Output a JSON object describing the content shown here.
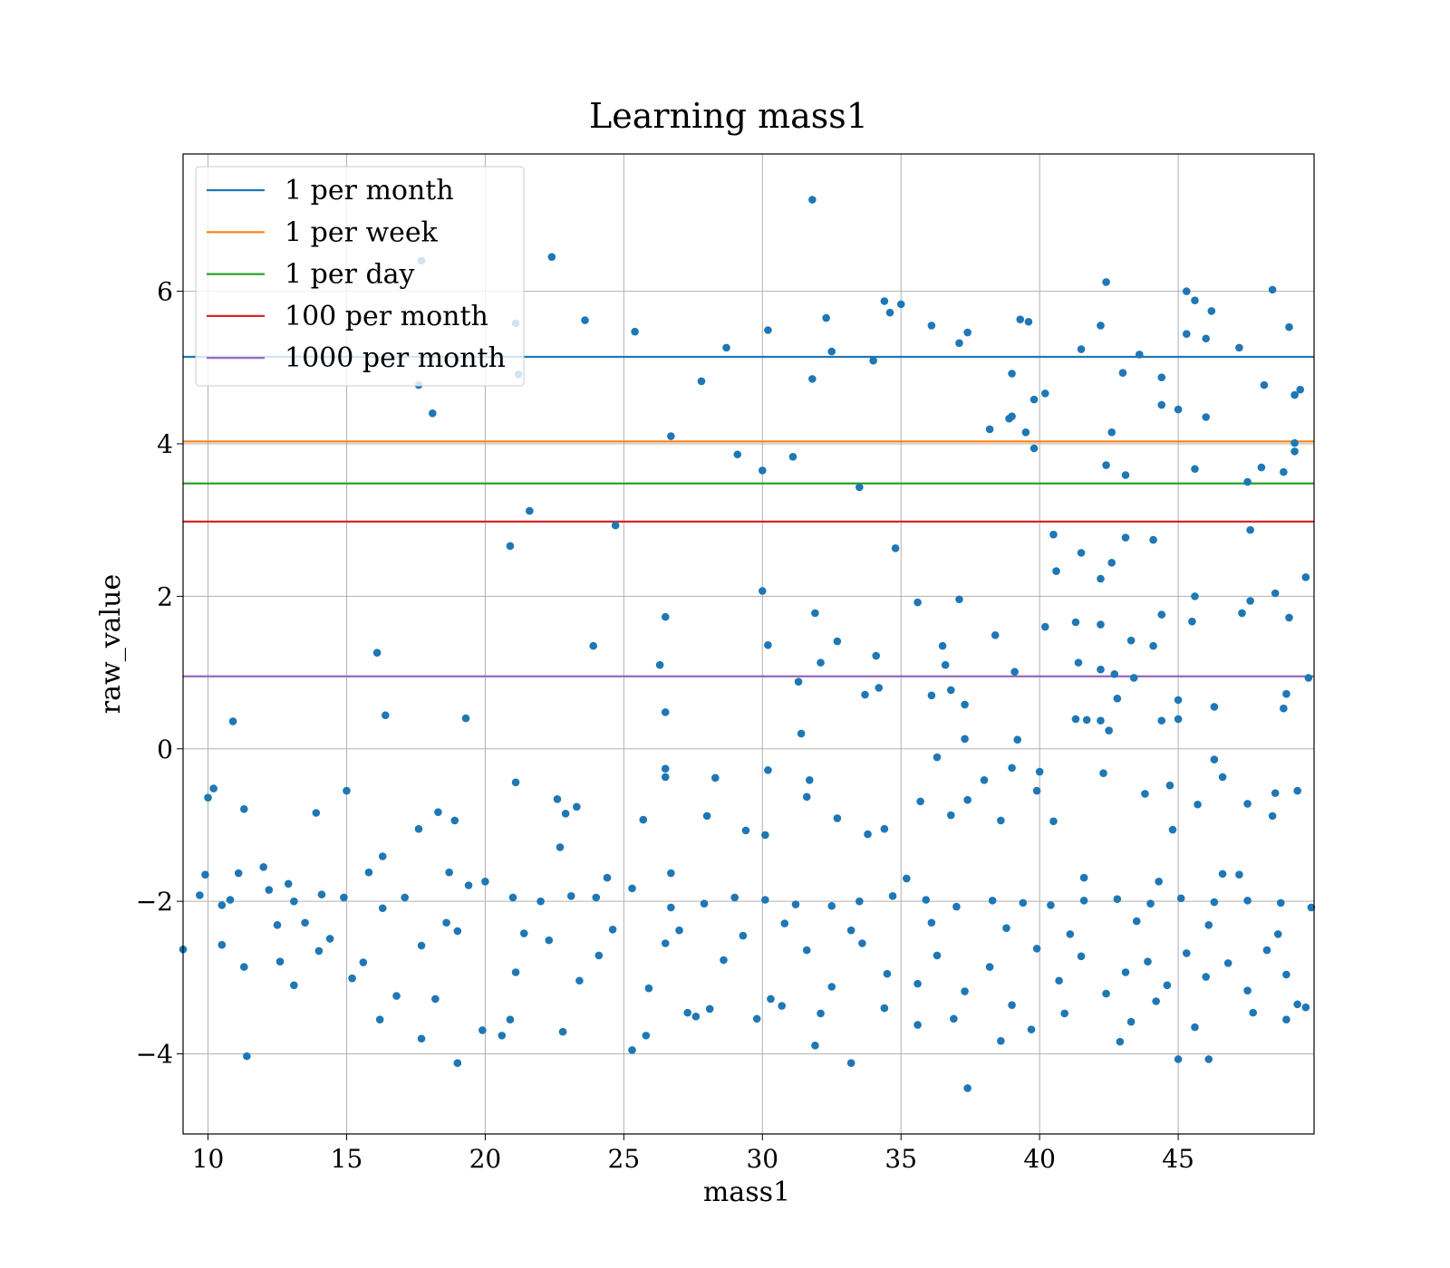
{
  "chart_data": {
    "type": "scatter",
    "title": "Learning mass1",
    "xlabel": "mass1",
    "ylabel": "raw_value",
    "xlim": [
      9.1,
      49.9
    ],
    "ylim": [
      -5.05,
      7.8
    ],
    "x_ticks": [
      10,
      15,
      20,
      25,
      30,
      35,
      40,
      45
    ],
    "x_tick_labels": [
      "10",
      "15",
      "20",
      "25",
      "30",
      "35",
      "40",
      "45"
    ],
    "y_ticks": [
      -4,
      -2,
      0,
      2,
      4,
      6
    ],
    "y_tick_labels": [
      "−4",
      "−2",
      "0",
      "2",
      "4",
      "6"
    ],
    "grid": true,
    "legend_position": "top-left",
    "point_color": "#1f77b4",
    "hlines": [
      {
        "name": "1 per month",
        "y": 5.14,
        "color": "#1f77b4"
      },
      {
        "name": "1 per week",
        "y": 4.03,
        "color": "#ff7f0e"
      },
      {
        "name": "1 per day",
        "y": 3.48,
        "color": "#2ca02c"
      },
      {
        "name": "100 per month",
        "y": 2.98,
        "color": "#d62728"
      },
      {
        "name": "1000 per month",
        "y": 0.95,
        "color": "#9467bd"
      }
    ],
    "points": [
      [
        31.8,
        7.2
      ],
      [
        22.4,
        6.45
      ],
      [
        17.7,
        6.4
      ],
      [
        42.4,
        6.12
      ],
      [
        45.3,
        6.0
      ],
      [
        48.4,
        6.02
      ],
      [
        45.6,
        5.88
      ],
      [
        34.4,
        5.87
      ],
      [
        35.0,
        5.83
      ],
      [
        34.6,
        5.72
      ],
      [
        46.2,
        5.74
      ],
      [
        23.6,
        5.62
      ],
      [
        32.3,
        5.65
      ],
      [
        21.1,
        5.58
      ],
      [
        39.3,
        5.63
      ],
      [
        39.6,
        5.6
      ],
      [
        36.1,
        5.55
      ],
      [
        42.2,
        5.55
      ],
      [
        49.0,
        5.53
      ],
      [
        25.4,
        5.47
      ],
      [
        30.2,
        5.49
      ],
      [
        37.4,
        5.46
      ],
      [
        45.3,
        5.44
      ],
      [
        46.0,
        5.38
      ],
      [
        37.1,
        5.32
      ],
      [
        28.7,
        5.26
      ],
      [
        41.5,
        5.24
      ],
      [
        47.2,
        5.26
      ],
      [
        32.5,
        5.21
      ],
      [
        43.6,
        5.17
      ],
      [
        34.0,
        5.09
      ],
      [
        39.0,
        4.92
      ],
      [
        43.0,
        4.93
      ],
      [
        21.2,
        4.91
      ],
      [
        44.4,
        4.87
      ],
      [
        27.8,
        4.82
      ],
      [
        31.8,
        4.85
      ],
      [
        17.6,
        4.77
      ],
      [
        48.1,
        4.77
      ],
      [
        49.4,
        4.71
      ],
      [
        49.2,
        4.64
      ],
      [
        40.2,
        4.66
      ],
      [
        39.8,
        4.58
      ],
      [
        44.4,
        4.51
      ],
      [
        45.0,
        4.45
      ],
      [
        18.1,
        4.4
      ],
      [
        38.9,
        4.33
      ],
      [
        39.0,
        4.36
      ],
      [
        46.0,
        4.35
      ],
      [
        38.2,
        4.19
      ],
      [
        39.5,
        4.15
      ],
      [
        42.6,
        4.15
      ],
      [
        26.7,
        4.1
      ],
      [
        49.2,
        4.01
      ],
      [
        39.8,
        3.94
      ],
      [
        49.2,
        3.9
      ],
      [
        29.1,
        3.86
      ],
      [
        31.1,
        3.83
      ],
      [
        42.4,
        3.72
      ],
      [
        48.0,
        3.69
      ],
      [
        45.6,
        3.67
      ],
      [
        30.0,
        3.65
      ],
      [
        48.8,
        3.63
      ],
      [
        43.1,
        3.59
      ],
      [
        47.5,
        3.5
      ],
      [
        33.5,
        3.43
      ],
      [
        21.6,
        3.12
      ],
      [
        24.7,
        2.93
      ],
      [
        47.6,
        2.87
      ],
      [
        40.5,
        2.81
      ],
      [
        43.1,
        2.77
      ],
      [
        44.1,
        2.74
      ],
      [
        20.9,
        2.66
      ],
      [
        34.8,
        2.63
      ],
      [
        41.5,
        2.57
      ],
      [
        42.6,
        2.44
      ],
      [
        40.6,
        2.33
      ],
      [
        49.6,
        2.25
      ],
      [
        42.2,
        2.23
      ],
      [
        30.0,
        2.07
      ],
      [
        48.5,
        2.04
      ],
      [
        45.6,
        2.0
      ],
      [
        47.6,
        1.94
      ],
      [
        35.6,
        1.92
      ],
      [
        37.1,
        1.96
      ],
      [
        47.3,
        1.78
      ],
      [
        31.9,
        1.78
      ],
      [
        44.4,
        1.76
      ],
      [
        26.5,
        1.73
      ],
      [
        49.0,
        1.72
      ],
      [
        45.5,
        1.67
      ],
      [
        41.3,
        1.66
      ],
      [
        42.2,
        1.63
      ],
      [
        40.2,
        1.6
      ],
      [
        38.4,
        1.49
      ],
      [
        32.7,
        1.41
      ],
      [
        43.3,
        1.42
      ],
      [
        23.9,
        1.35
      ],
      [
        30.2,
        1.36
      ],
      [
        36.5,
        1.35
      ],
      [
        44.1,
        1.35
      ],
      [
        16.1,
        1.26
      ],
      [
        34.1,
        1.22
      ],
      [
        32.1,
        1.13
      ],
      [
        41.4,
        1.13
      ],
      [
        26.3,
        1.1
      ],
      [
        36.6,
        1.1
      ],
      [
        42.2,
        1.04
      ],
      [
        39.1,
        1.01
      ],
      [
        42.7,
        0.98
      ],
      [
        43.4,
        0.93
      ],
      [
        49.7,
        0.93
      ],
      [
        31.3,
        0.88
      ],
      [
        34.2,
        0.8
      ],
      [
        33.7,
        0.71
      ],
      [
        36.8,
        0.77
      ],
      [
        36.1,
        0.7
      ],
      [
        48.9,
        0.72
      ],
      [
        42.8,
        0.66
      ],
      [
        45.0,
        0.64
      ],
      [
        37.3,
        0.58
      ],
      [
        46.3,
        0.55
      ],
      [
        48.8,
        0.53
      ],
      [
        26.5,
        0.48
      ],
      [
        16.4,
        0.44
      ],
      [
        19.3,
        0.4
      ],
      [
        41.3,
        0.39
      ],
      [
        41.7,
        0.38
      ],
      [
        42.2,
        0.37
      ],
      [
        44.4,
        0.37
      ],
      [
        45.0,
        0.39
      ],
      [
        10.9,
        0.36
      ],
      [
        42.5,
        0.24
      ],
      [
        31.4,
        0.2
      ],
      [
        37.3,
        0.13
      ],
      [
        39.2,
        0.12
      ],
      [
        36.3,
        -0.11
      ],
      [
        46.3,
        -0.14
      ],
      [
        39.0,
        -0.25
      ],
      [
        26.5,
        -0.26
      ],
      [
        30.2,
        -0.28
      ],
      [
        40.0,
        -0.3
      ],
      [
        42.3,
        -0.32
      ],
      [
        26.5,
        -0.37
      ],
      [
        46.6,
        -0.37
      ],
      [
        28.3,
        -0.38
      ],
      [
        31.7,
        -0.41
      ],
      [
        38.0,
        -0.41
      ],
      [
        21.1,
        -0.44
      ],
      [
        44.7,
        -0.48
      ],
      [
        10.2,
        -0.52
      ],
      [
        15.0,
        -0.55
      ],
      [
        39.9,
        -0.55
      ],
      [
        43.8,
        -0.59
      ],
      [
        48.5,
        -0.58
      ],
      [
        49.3,
        -0.55
      ],
      [
        10.0,
        -0.64
      ],
      [
        31.6,
        -0.63
      ],
      [
        22.6,
        -0.66
      ],
      [
        35.7,
        -0.69
      ],
      [
        37.4,
        -0.67
      ],
      [
        45.7,
        -0.73
      ],
      [
        47.5,
        -0.72
      ],
      [
        11.3,
        -0.79
      ],
      [
        23.3,
        -0.76
      ],
      [
        22.9,
        -0.85
      ],
      [
        18.3,
        -0.83
      ],
      [
        13.9,
        -0.84
      ],
      [
        36.8,
        -0.87
      ],
      [
        32.7,
        -0.91
      ],
      [
        28.0,
        -0.88
      ],
      [
        25.7,
        -0.93
      ],
      [
        18.9,
        -0.94
      ],
      [
        38.6,
        -0.94
      ],
      [
        40.5,
        -0.95
      ],
      [
        48.4,
        -0.88
      ],
      [
        17.6,
        -1.05
      ],
      [
        29.4,
        -1.07
      ],
      [
        34.4,
        -1.05
      ],
      [
        44.8,
        -1.06
      ],
      [
        33.8,
        -1.12
      ],
      [
        30.1,
        -1.13
      ],
      [
        22.7,
        -1.29
      ],
      [
        16.3,
        -1.41
      ],
      [
        12.0,
        -1.55
      ],
      [
        9.9,
        -1.65
      ],
      [
        11.1,
        -1.63
      ],
      [
        15.8,
        -1.62
      ],
      [
        18.7,
        -1.62
      ],
      [
        24.4,
        -1.69
      ],
      [
        26.7,
        -1.63
      ],
      [
        35.2,
        -1.7
      ],
      [
        41.6,
        -1.69
      ],
      [
        44.3,
        -1.74
      ],
      [
        46.6,
        -1.64
      ],
      [
        47.2,
        -1.65
      ],
      [
        9.7,
        -1.92
      ],
      [
        10.5,
        -2.05
      ],
      [
        10.8,
        -1.98
      ],
      [
        12.2,
        -1.85
      ],
      [
        12.9,
        -1.77
      ],
      [
        13.1,
        -2.0
      ],
      [
        14.1,
        -1.91
      ],
      [
        14.9,
        -1.95
      ],
      [
        16.3,
        -2.09
      ],
      [
        17.1,
        -1.95
      ],
      [
        19.4,
        -1.79
      ],
      [
        20.0,
        -1.74
      ],
      [
        21.0,
        -1.95
      ],
      [
        22.0,
        -2.0
      ],
      [
        23.1,
        -1.93
      ],
      [
        24.0,
        -1.95
      ],
      [
        25.3,
        -1.83
      ],
      [
        26.7,
        -2.08
      ],
      [
        27.9,
        -2.03
      ],
      [
        29.0,
        -1.95
      ],
      [
        30.1,
        -1.98
      ],
      [
        31.2,
        -2.04
      ],
      [
        32.5,
        -2.06
      ],
      [
        33.5,
        -2.0
      ],
      [
        34.7,
        -1.93
      ],
      [
        35.9,
        -1.98
      ],
      [
        37.0,
        -2.07
      ],
      [
        38.3,
        -1.99
      ],
      [
        39.4,
        -2.02
      ],
      [
        40.4,
        -2.05
      ],
      [
        41.6,
        -1.99
      ],
      [
        42.8,
        -1.97
      ],
      [
        44.0,
        -2.03
      ],
      [
        45.1,
        -1.96
      ],
      [
        46.3,
        -2.01
      ],
      [
        47.5,
        -1.99
      ],
      [
        48.7,
        -2.02
      ],
      [
        49.8,
        -2.08
      ],
      [
        9.1,
        -2.63
      ],
      [
        10.5,
        -2.57
      ],
      [
        11.3,
        -2.86
      ],
      [
        12.6,
        -2.79
      ],
      [
        13.5,
        -2.28
      ],
      [
        14.4,
        -2.49
      ],
      [
        15.6,
        -2.8
      ],
      [
        16.8,
        -3.24
      ],
      [
        17.7,
        -2.58
      ],
      [
        18.2,
        -3.28
      ],
      [
        19.0,
        -2.39
      ],
      [
        19.9,
        -3.69
      ],
      [
        21.1,
        -2.93
      ],
      [
        22.3,
        -2.51
      ],
      [
        23.4,
        -3.04
      ],
      [
        24.6,
        -2.37
      ],
      [
        25.9,
        -3.14
      ],
      [
        26.5,
        -2.55
      ],
      [
        27.3,
        -3.46
      ],
      [
        28.6,
        -2.77
      ],
      [
        29.3,
        -2.45
      ],
      [
        30.3,
        -3.28
      ],
      [
        31.6,
        -2.64
      ],
      [
        32.5,
        -3.12
      ],
      [
        33.6,
        -2.55
      ],
      [
        34.5,
        -2.95
      ],
      [
        35.6,
        -3.08
      ],
      [
        36.3,
        -2.71
      ],
      [
        37.3,
        -3.18
      ],
      [
        38.2,
        -2.86
      ],
      [
        39.0,
        -3.36
      ],
      [
        39.9,
        -2.62
      ],
      [
        40.7,
        -3.04
      ],
      [
        41.5,
        -2.72
      ],
      [
        42.4,
        -3.21
      ],
      [
        43.1,
        -2.93
      ],
      [
        43.9,
        -2.79
      ],
      [
        44.6,
        -3.1
      ],
      [
        45.3,
        -2.68
      ],
      [
        46.0,
        -2.99
      ],
      [
        46.8,
        -2.81
      ],
      [
        47.5,
        -3.17
      ],
      [
        48.2,
        -2.64
      ],
      [
        48.9,
        -2.96
      ],
      [
        49.6,
        -3.39
      ],
      [
        11.4,
        -4.03
      ],
      [
        19.0,
        -4.12
      ],
      [
        25.3,
        -3.95
      ],
      [
        31.9,
        -3.89
      ],
      [
        33.2,
        -4.12
      ],
      [
        37.4,
        -4.45
      ],
      [
        45.0,
        -4.07
      ],
      [
        46.1,
        -4.07
      ],
      [
        17.7,
        -3.8
      ],
      [
        27.6,
        -3.51
      ],
      [
        30.7,
        -3.37
      ],
      [
        35.6,
        -3.62
      ],
      [
        38.6,
        -3.83
      ],
      [
        42.9,
        -3.84
      ],
      [
        47.7,
        -3.46
      ],
      [
        13.1,
        -3.1
      ],
      [
        15.2,
        -3.01
      ],
      [
        16.2,
        -3.55
      ],
      [
        20.6,
        -3.76
      ],
      [
        22.8,
        -3.71
      ],
      [
        25.8,
        -3.76
      ],
      [
        29.8,
        -3.54
      ],
      [
        34.4,
        -3.4
      ],
      [
        40.9,
        -3.47
      ],
      [
        44.2,
        -3.31
      ],
      [
        49.3,
        -3.35
      ],
      [
        12.5,
        -2.31
      ],
      [
        14.0,
        -2.65
      ],
      [
        18.6,
        -2.28
      ],
      [
        21.4,
        -2.42
      ],
      [
        24.1,
        -2.71
      ],
      [
        27.0,
        -2.38
      ],
      [
        30.8,
        -2.29
      ],
      [
        33.2,
        -2.38
      ],
      [
        36.1,
        -2.28
      ],
      [
        38.8,
        -2.35
      ],
      [
        41.1,
        -2.43
      ],
      [
        43.5,
        -2.26
      ],
      [
        46.1,
        -2.31
      ],
      [
        48.6,
        -2.43
      ],
      [
        20.9,
        -3.55
      ],
      [
        28.1,
        -3.41
      ],
      [
        32.1,
        -3.47
      ],
      [
        36.9,
        -3.54
      ],
      [
        39.7,
        -3.68
      ],
      [
        43.3,
        -3.58
      ],
      [
        45.6,
        -3.65
      ],
      [
        48.9,
        -3.55
      ]
    ]
  }
}
